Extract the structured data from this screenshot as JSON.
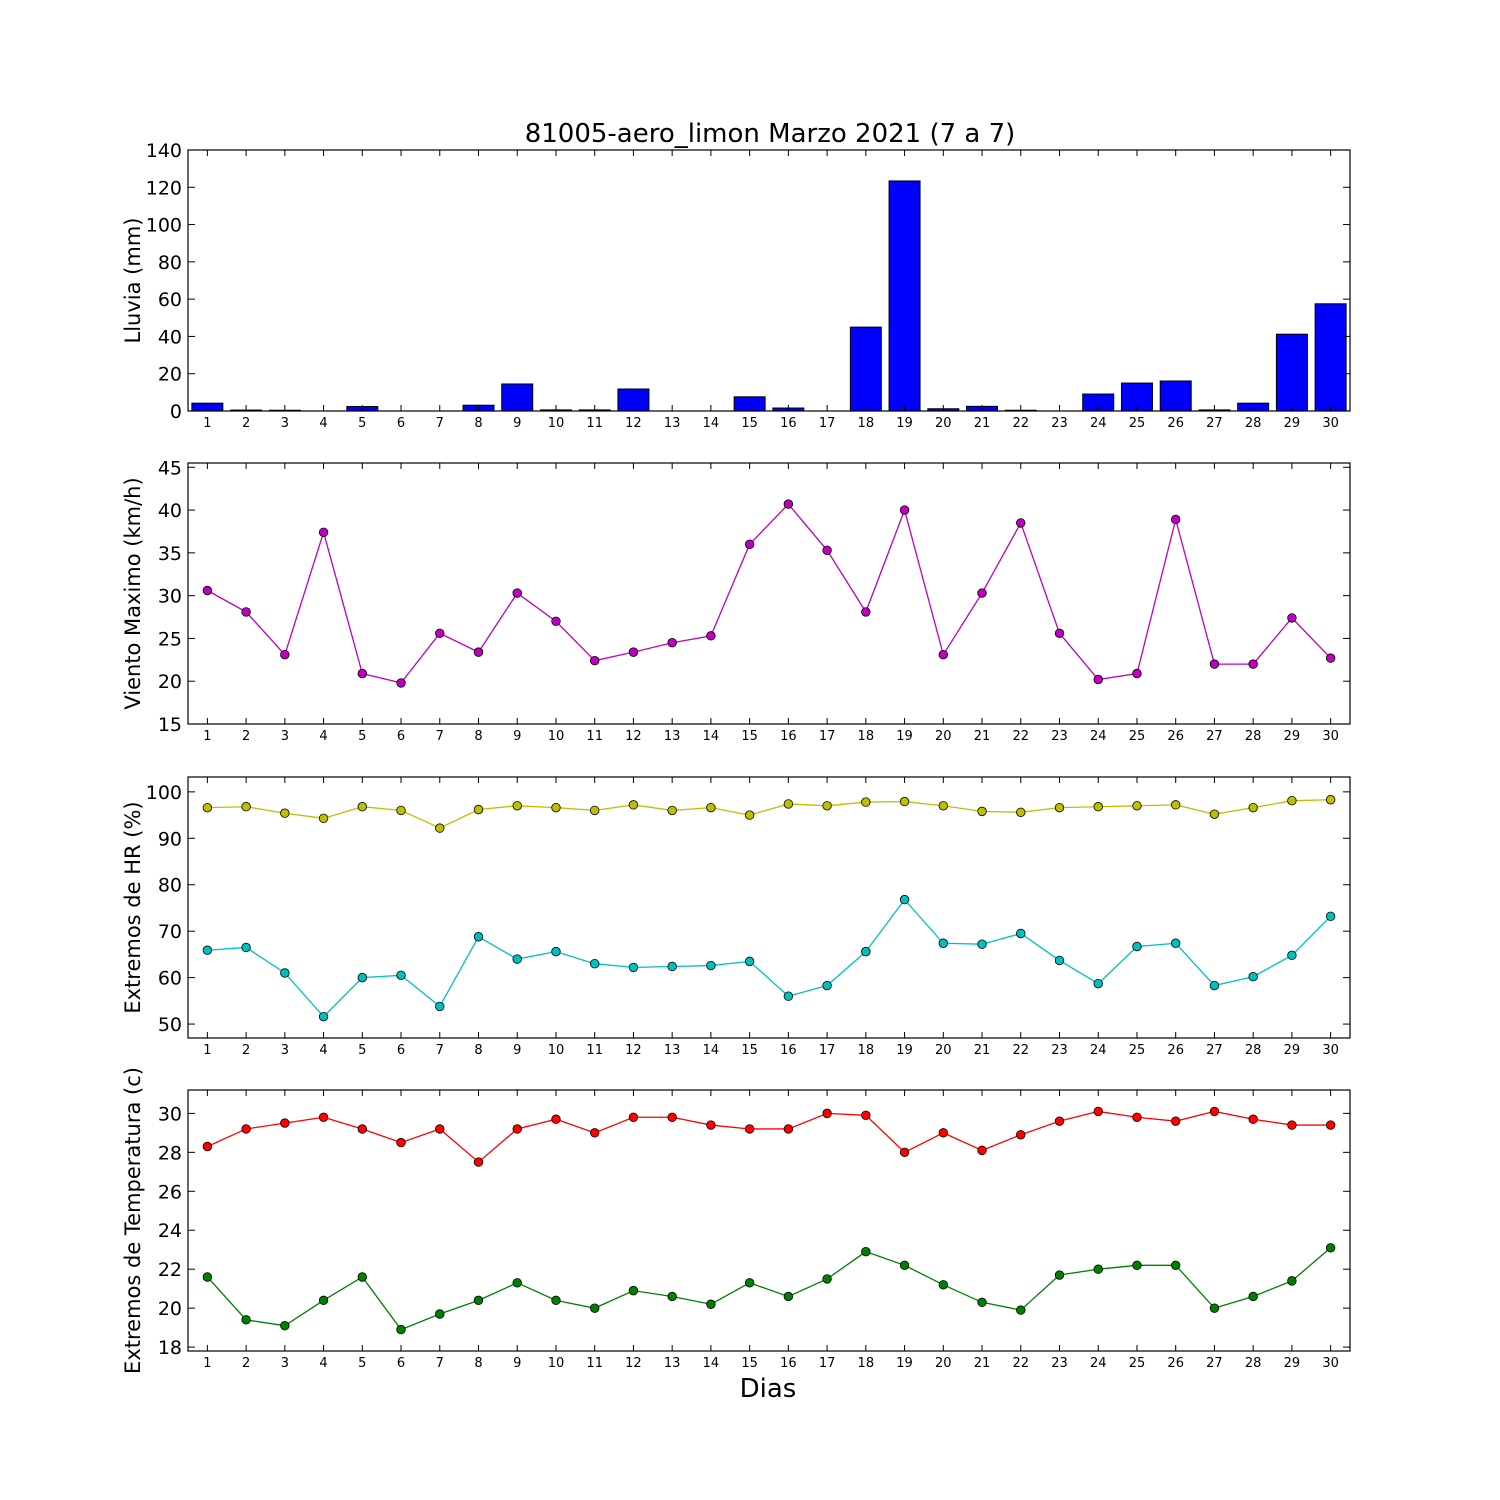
{
  "figure": {
    "title": "81005-aero_limon Marzo 2021  (7 a 7)",
    "xlabel": "Dias"
  },
  "chart_data": [
    {
      "type": "bar",
      "ylabel": "Lluvia (mm)",
      "ylim": [
        0,
        140
      ],
      "yticks": [
        0,
        20,
        40,
        60,
        80,
        100,
        120,
        140
      ],
      "categories": [
        1,
        2,
        3,
        4,
        5,
        6,
        7,
        8,
        9,
        10,
        11,
        12,
        13,
        14,
        15,
        16,
        17,
        18,
        19,
        20,
        21,
        22,
        23,
        24,
        25,
        26,
        27,
        28,
        29,
        30
      ],
      "series": [
        {
          "color": "#0000ff",
          "values": [
            4.2,
            0.5,
            0.4,
            0,
            2.4,
            0,
            0,
            3.1,
            14.5,
            0.6,
            0.6,
            11.8,
            0,
            0,
            7.6,
            1.6,
            0,
            45,
            123.4,
            1.2,
            2.5,
            0.4,
            0,
            9.1,
            15,
            16.1,
            0.6,
            4.2,
            41.2,
            57.5
          ]
        }
      ]
    },
    {
      "type": "line",
      "ylabel": "Viento Maximo (km/h)",
      "ylim": [
        15,
        45.5
      ],
      "yticks": [
        15,
        20,
        25,
        30,
        35,
        40,
        45
      ],
      "x": [
        1,
        2,
        3,
        4,
        5,
        6,
        7,
        8,
        9,
        10,
        11,
        12,
        13,
        14,
        15,
        16,
        17,
        18,
        19,
        20,
        21,
        22,
        23,
        24,
        25,
        26,
        27,
        28,
        29,
        30
      ],
      "series": [
        {
          "color": "#bf00bf",
          "values": [
            30.6,
            28.1,
            23.1,
            37.4,
            20.9,
            19.8,
            25.6,
            23.4,
            30.3,
            27.0,
            22.4,
            23.4,
            24.5,
            25.3,
            36.0,
            40.7,
            35.3,
            28.1,
            40.0,
            23.1,
            30.3,
            38.5,
            25.6,
            20.2,
            20.9,
            38.9,
            22.0,
            22.0,
            27.4,
            22.7
          ]
        }
      ]
    },
    {
      "type": "line",
      "ylabel": "Extremos de HR (%)",
      "ylim": [
        47,
        103.2
      ],
      "yticks": [
        50,
        60,
        70,
        80,
        90,
        100
      ],
      "x": [
        1,
        2,
        3,
        4,
        5,
        6,
        7,
        8,
        9,
        10,
        11,
        12,
        13,
        14,
        15,
        16,
        17,
        18,
        19,
        20,
        21,
        22,
        23,
        24,
        25,
        26,
        27,
        28,
        29,
        30
      ],
      "series": [
        {
          "color": "#bfbf00",
          "values": [
            96.6,
            96.8,
            95.4,
            94.3,
            96.8,
            96.0,
            92.2,
            96.2,
            97.0,
            96.6,
            96.0,
            97.2,
            96.0,
            96.6,
            95.0,
            97.4,
            97.0,
            97.8,
            97.9,
            97.0,
            95.8,
            95.6,
            96.6,
            96.8,
            97.0,
            97.2,
            95.2,
            96.6,
            98.1,
            98.3
          ]
        },
        {
          "color": "#00bfbf",
          "values": [
            65.9,
            66.5,
            61.0,
            51.6,
            60.0,
            60.5,
            53.8,
            68.8,
            64.0,
            65.6,
            63.0,
            62.2,
            62.4,
            62.6,
            63.5,
            56.0,
            58.3,
            65.6,
            76.8,
            67.4,
            67.2,
            69.5,
            63.7,
            58.7,
            66.7,
            67.4,
            58.3,
            60.2,
            64.8,
            73.2
          ]
        }
      ]
    },
    {
      "type": "line",
      "ylabel": "Extremos de Temperatura (c)",
      "ylim": [
        17.8,
        31.2
      ],
      "yticks": [
        18,
        20,
        22,
        24,
        26,
        28,
        30
      ],
      "x": [
        1,
        2,
        3,
        4,
        5,
        6,
        7,
        8,
        9,
        10,
        11,
        12,
        13,
        14,
        15,
        16,
        17,
        18,
        19,
        20,
        21,
        22,
        23,
        24,
        25,
        26,
        27,
        28,
        29,
        30
      ],
      "series": [
        {
          "color": "#ff0000",
          "values": [
            28.3,
            29.2,
            29.5,
            29.8,
            29.2,
            28.5,
            29.2,
            27.5,
            29.2,
            29.7,
            29.0,
            29.8,
            29.8,
            29.4,
            29.2,
            29.2,
            30.0,
            29.9,
            28.0,
            29.0,
            28.1,
            28.9,
            29.6,
            30.1,
            29.8,
            29.6,
            30.1,
            29.7,
            29.4,
            29.4
          ]
        },
        {
          "color": "#008000",
          "values": [
            21.6,
            19.4,
            19.1,
            20.4,
            21.6,
            18.9,
            19.7,
            20.4,
            21.3,
            20.4,
            20.0,
            20.9,
            20.6,
            20.2,
            21.3,
            20.6,
            21.5,
            22.9,
            22.2,
            21.2,
            20.3,
            19.9,
            21.7,
            22.0,
            22.2,
            22.2,
            20.0,
            20.6,
            21.4,
            23.1
          ]
        }
      ]
    }
  ]
}
